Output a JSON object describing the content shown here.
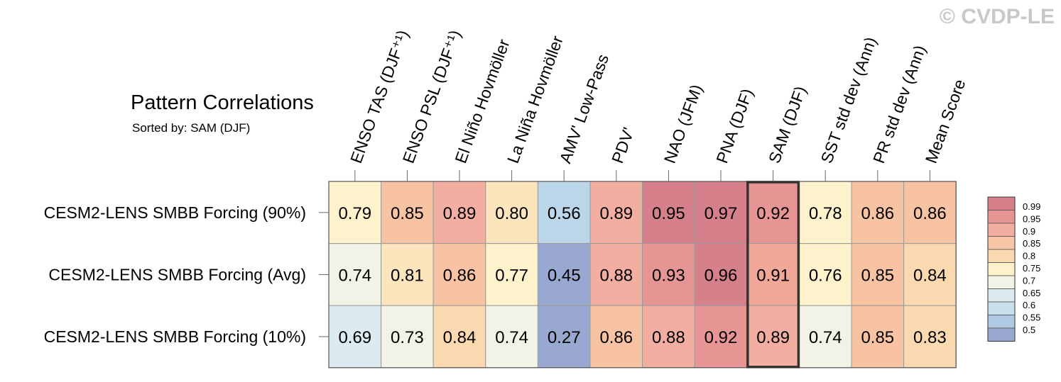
{
  "watermark": "© CVDP-LE",
  "chart_data": {
    "type": "heatmap",
    "title": "Pattern Correlations",
    "subtitle": "Sorted by: SAM (DJF)",
    "columns": [
      "ENSO TAS (DJF⁺¹)",
      "ENSO PSL (DJF⁺¹)",
      "El Niño Hovmöller",
      "La Niña Hovmöller",
      "AMV' Low-Pass",
      "PDV'",
      "NAO (JFM)",
      "PNA (DJF)",
      "SAM (DJF)",
      "SST std dev (Ann)",
      "PR std dev (Ann)",
      "Mean Score"
    ],
    "rows": [
      "CESM2-LENS SMBB Forcing (90%)",
      "CESM2-LENS SMBB Forcing (Avg)",
      "CESM2-LENS SMBB Forcing (10%)"
    ],
    "values": [
      [
        "0.79",
        "0.85",
        "0.89",
        "0.80",
        "0.56",
        "0.89",
        "0.95",
        "0.97",
        "0.92",
        "0.78",
        "0.86",
        "0.86"
      ],
      [
        "0.74",
        "0.81",
        "0.86",
        "0.77",
        "0.45",
        "0.88",
        "0.93",
        "0.96",
        "0.91",
        "0.76",
        "0.85",
        "0.84"
      ],
      [
        "0.69",
        "0.73",
        "0.84",
        "0.74",
        "0.27",
        "0.86",
        "0.88",
        "0.92",
        "0.89",
        "0.74",
        "0.85",
        "0.83"
      ]
    ],
    "sorted_column": "SAM (DJF)",
    "colorbar": {
      "tick_labels": [
        "0.99",
        "0.95",
        "0.9",
        "0.85",
        "0.8",
        "0.75",
        "0.7",
        "0.65",
        "0.6",
        "0.55",
        "0.5"
      ],
      "colors": [
        "#d6808c",
        "#e69494",
        "#f2aea0",
        "#f7c6a6",
        "#fbd9b0",
        "#fdf2cc",
        "#f2f2e6",
        "#dcebf0",
        "#c8e0ec",
        "#b0c9e2",
        "#98a8d0"
      ]
    }
  }
}
